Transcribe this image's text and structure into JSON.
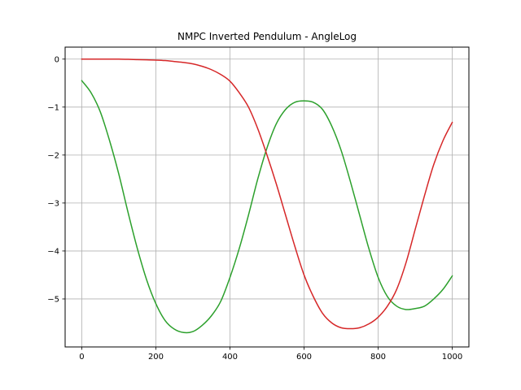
{
  "chart_data": {
    "type": "line",
    "title": "NMPC Inverted Pendulum - AngleLog",
    "xlabel": "",
    "ylabel": "",
    "xlim": [
      -45,
      1045
    ],
    "ylim": [
      -6.0,
      0.25
    ],
    "grid": true,
    "x_ticks": [
      0,
      200,
      400,
      600,
      800,
      1000
    ],
    "x_tick_labels": [
      "0",
      "200",
      "400",
      "600",
      "800",
      "1000"
    ],
    "y_ticks": [
      0,
      -1,
      -2,
      -3,
      -4,
      -5
    ],
    "y_tick_labels": [
      "0",
      "−1",
      "−2",
      "−3",
      "−4",
      "−5"
    ],
    "series": [
      {
        "color": "#2ca02c",
        "x": [
          0,
          25,
          50,
          75,
          100,
          125,
          150,
          175,
          200,
          225,
          250,
          275,
          300,
          325,
          350,
          375,
          400,
          425,
          450,
          475,
          500,
          525,
          550,
          575,
          600,
          625,
          650,
          675,
          700,
          725,
          750,
          775,
          800,
          825,
          850,
          875,
          900,
          925,
          950,
          975,
          1000
        ],
        "y": [
          -0.45,
          -0.7,
          -1.1,
          -1.7,
          -2.4,
          -3.2,
          -3.95,
          -4.6,
          -5.1,
          -5.45,
          -5.63,
          -5.7,
          -5.68,
          -5.55,
          -5.35,
          -5.05,
          -4.55,
          -3.95,
          -3.25,
          -2.5,
          -1.85,
          -1.35,
          -1.05,
          -0.9,
          -0.87,
          -0.9,
          -1.05,
          -1.4,
          -1.9,
          -2.55,
          -3.25,
          -3.95,
          -4.55,
          -4.95,
          -5.15,
          -5.22,
          -5.2,
          -5.15,
          -5.0,
          -4.8,
          -4.52
        ]
      },
      {
        "color": "#d62728",
        "x": [
          0,
          25,
          50,
          75,
          100,
          125,
          150,
          175,
          200,
          225,
          250,
          275,
          300,
          325,
          350,
          375,
          400,
          425,
          450,
          475,
          500,
          525,
          550,
          575,
          600,
          625,
          650,
          675,
          700,
          725,
          750,
          775,
          800,
          825,
          850,
          875,
          900,
          925,
          950,
          975,
          1000
        ],
        "y": [
          0.0,
          0.0,
          0.0,
          0.0,
          0.0,
          -0.005,
          -0.01,
          -0.015,
          -0.02,
          -0.03,
          -0.05,
          -0.07,
          -0.1,
          -0.15,
          -0.22,
          -0.32,
          -0.46,
          -0.7,
          -1.0,
          -1.45,
          -2.0,
          -2.6,
          -3.25,
          -3.9,
          -4.5,
          -4.95,
          -5.3,
          -5.5,
          -5.6,
          -5.62,
          -5.6,
          -5.52,
          -5.38,
          -5.15,
          -4.8,
          -4.25,
          -3.55,
          -2.85,
          -2.2,
          -1.7,
          -1.32
        ]
      }
    ]
  }
}
